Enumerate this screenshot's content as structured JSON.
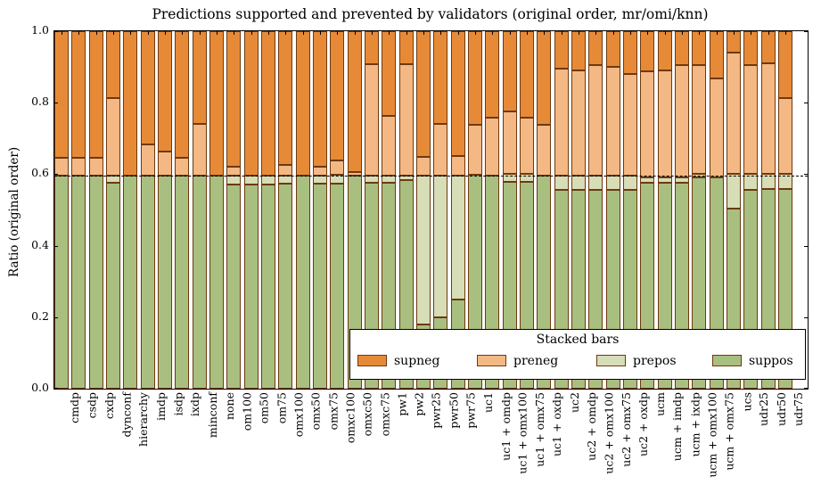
{
  "title": "Predictions supported and prevented by validators (original order, mr/omi/knn)",
  "ylabel": "Ratio (original order)",
  "yticks": [
    "0.0",
    "0.2",
    "0.4",
    "0.6",
    "0.8",
    "1.0"
  ],
  "colors": {
    "supneg": "#e78a38",
    "preneg": "#f4b884",
    "prepos": "#d6ddb7",
    "suppos": "#a9bf80",
    "bar_edge": "#6d3a10",
    "axis": "#000000"
  },
  "legend": {
    "title": "Stacked bars",
    "entries": [
      {
        "label": "supneg",
        "color_key": "supneg"
      },
      {
        "label": "preneg",
        "color_key": "preneg"
      },
      {
        "label": "prepos",
        "color_key": "prepos"
      },
      {
        "label": "suppos",
        "color_key": "suppos"
      }
    ]
  },
  "chart_data": {
    "type": "bar",
    "stacked": true,
    "grid": false,
    "legend_position": "lower right",
    "ylim": [
      0.0,
      1.0
    ],
    "baseline_dashed_y": 0.597,
    "xlabel": "",
    "categories": [
      "cmdp",
      "csdp",
      "cxdp",
      "dynconf",
      "hierarchy",
      "imdp",
      "isdp",
      "ixdp",
      "minconf",
      "none",
      "om100",
      "om50",
      "om75",
      "omx100",
      "omx50",
      "omx75",
      "omxc100",
      "omxc50",
      "omxc75",
      "pw1",
      "pw2",
      "pwr25",
      "pwr50",
      "pwr75",
      "uc1",
      "uc1 + omdp",
      "uc1 + omx100",
      "uc1 + omx75",
      "uc1 + oxdp",
      "uc2",
      "uc2 + omdp",
      "uc2 + omx100",
      "uc2 + omx75",
      "uc2 + oxdp",
      "ucm",
      "ucm + imdp",
      "ucm + ixdp",
      "ucm + omx100",
      "ucm + omx75",
      "ucs",
      "udr25",
      "udr50",
      "udr75"
    ],
    "series": [
      {
        "name": "suppos",
        "values": [
          0.597,
          0.597,
          0.597,
          0.576,
          0.597,
          0.597,
          0.597,
          0.597,
          0.597,
          0.595,
          0.57,
          0.57,
          0.57,
          0.574,
          0.597,
          0.574,
          0.574,
          0.597,
          0.575,
          0.575,
          0.583,
          0.18,
          0.2,
          0.25,
          0.599,
          0.595,
          0.578,
          0.578,
          0.595,
          0.555,
          0.555,
          0.555,
          0.555,
          0.555,
          0.575,
          0.575,
          0.575,
          0.59,
          0.59,
          0.504,
          0.557,
          0.558,
          0.558
        ]
      },
      {
        "name": "prepos",
        "values": [
          0.0,
          0.0,
          0.0,
          0.021,
          0.0,
          0.0,
          0.0,
          0.0,
          0.0,
          0.0,
          0.025,
          0.025,
          0.025,
          0.023,
          0.0,
          0.023,
          0.025,
          0.0,
          0.022,
          0.02,
          0.012,
          0.415,
          0.395,
          0.345,
          0.0,
          0.0,
          0.022,
          0.022,
          0.0,
          0.04,
          0.04,
          0.04,
          0.04,
          0.04,
          0.017,
          0.017,
          0.017,
          0.012,
          0.0,
          0.098,
          0.045,
          0.044,
          0.044
        ]
      },
      {
        "name": "preneg",
        "values": [
          0.05,
          0.05,
          0.05,
          0.216,
          0.0,
          0.087,
          0.067,
          0.05,
          0.143,
          0.0,
          0.026,
          0.0,
          0.0,
          0.028,
          0.0,
          0.024,
          0.039,
          0.01,
          0.311,
          0.168,
          0.313,
          0.053,
          0.145,
          0.055,
          0.138,
          0.163,
          0.176,
          0.158,
          0.142,
          0.3,
          0.295,
          0.31,
          0.305,
          0.285,
          0.295,
          0.298,
          0.313,
          0.303,
          0.278,
          0.338,
          0.303,
          0.308,
          0.21
        ]
      },
      {
        "name": "supneg",
        "values": [
          0.353,
          0.353,
          0.353,
          0.187,
          0.403,
          0.316,
          0.336,
          0.353,
          0.26,
          0.405,
          0.379,
          0.405,
          0.405,
          0.375,
          0.403,
          0.379,
          0.362,
          0.393,
          0.092,
          0.237,
          0.092,
          0.352,
          0.26,
          0.35,
          0.263,
          0.242,
          0.224,
          0.242,
          0.263,
          0.105,
          0.11,
          0.095,
          0.1,
          0.12,
          0.113,
          0.11,
          0.095,
          0.095,
          0.132,
          0.06,
          0.095,
          0.09,
          0.188
        ]
      }
    ]
  }
}
